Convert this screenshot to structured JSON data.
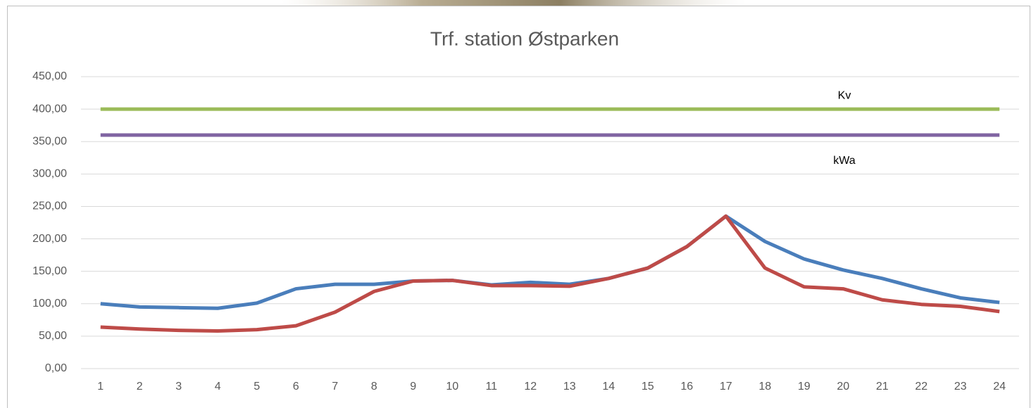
{
  "chart_data": {
    "type": "line",
    "title": "Trf. station Østparken",
    "categories": [
      "1",
      "2",
      "3",
      "4",
      "5",
      "6",
      "7",
      "8",
      "9",
      "10",
      "11",
      "12",
      "13",
      "14",
      "15",
      "16",
      "17",
      "18",
      "19",
      "20",
      "21",
      "22",
      "23",
      "24"
    ],
    "series": [
      {
        "color": "#4a7ebb",
        "values": [
          100,
          95,
          94,
          93,
          101,
          123,
          130,
          130,
          135,
          136,
          129,
          133,
          130,
          139,
          155,
          188,
          235,
          196,
          169,
          152,
          139,
          123,
          109,
          102
        ]
      },
      {
        "color": "#be4b48",
        "values": [
          64,
          61,
          59,
          58,
          60,
          66,
          87,
          119,
          135,
          136,
          128,
          128,
          127,
          139,
          155,
          188,
          235,
          155,
          126,
          123,
          106,
          99,
          96,
          88
        ]
      },
      {
        "name": "Kv",
        "color": "#9bbb59",
        "values": [
          400,
          400,
          400,
          400,
          400,
          400,
          400,
          400,
          400,
          400,
          400,
          400,
          400,
          400,
          400,
          400,
          400,
          400,
          400,
          400,
          400,
          400,
          400,
          400
        ]
      },
      {
        "name": "kWa",
        "color": "#8064a2",
        "values": [
          360,
          360,
          360,
          360,
          360,
          360,
          360,
          360,
          360,
          360,
          360,
          360,
          360,
          360,
          360,
          360,
          360,
          360,
          360,
          360,
          360,
          360,
          360,
          360
        ]
      }
    ],
    "ylim": [
      0,
      450
    ],
    "yticks": [
      {
        "value": 0,
        "label": "0,00"
      },
      {
        "value": 50,
        "label": "50,00"
      },
      {
        "value": 100,
        "label": "100,00"
      },
      {
        "value": 150,
        "label": "150,00"
      },
      {
        "value": 200,
        "label": "200,00"
      },
      {
        "value": 250,
        "label": "250,00"
      },
      {
        "value": 300,
        "label": "300,00"
      },
      {
        "value": 350,
        "label": "350,00"
      },
      {
        "value": 400,
        "label": "400,00"
      },
      {
        "value": 450,
        "label": "450,00"
      }
    ],
    "grid": true
  }
}
